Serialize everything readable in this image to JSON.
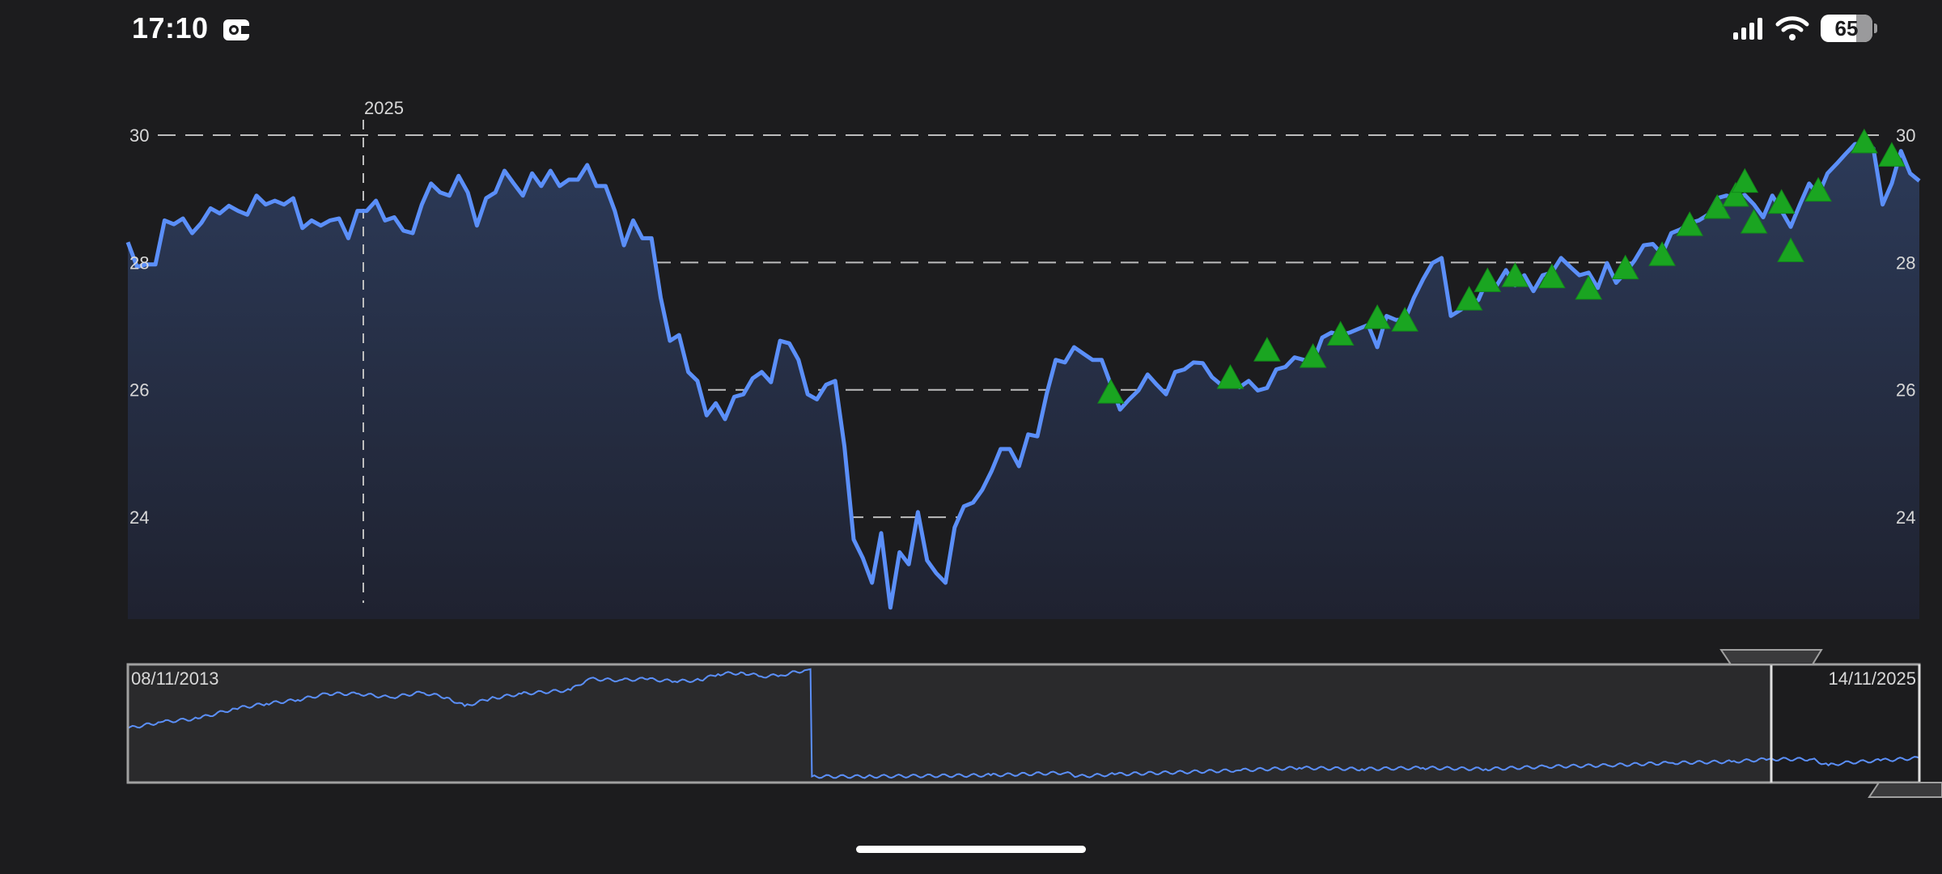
{
  "status_bar": {
    "time": "17:10",
    "battery": "65",
    "icons": [
      "app-icon",
      "signal-icon",
      "wifi-icon",
      "battery-icon"
    ]
  },
  "colors": {
    "background": "#1c1c1e",
    "line": "#5b8ff9",
    "fill_top": "#2c3a58",
    "fill_bottom": "#1f2230",
    "marker": "#1aa521",
    "grid": "#bdbdbd",
    "navigator_bg": "#2a2a2c"
  },
  "chart_data": {
    "type": "line",
    "title": "",
    "grid": true,
    "ylim": [
      22.4,
      30.8
    ],
    "yticks": [
      "30",
      "28",
      "26",
      "24"
    ],
    "ytick_values": [
      30,
      28,
      26,
      24
    ],
    "x_tick_label": "2025",
    "series": [
      {
        "values": [
          28.32,
          27.93,
          27.97,
          27.97,
          28.66,
          28.6,
          28.69,
          28.46,
          28.62,
          28.85,
          28.77,
          28.89,
          28.81,
          28.75,
          29.05,
          28.91,
          28.97,
          28.91,
          29.01,
          28.54,
          28.66,
          28.58,
          28.66,
          28.69,
          28.38,
          28.81,
          28.81,
          28.97,
          28.66,
          28.71,
          28.5,
          28.46,
          28.91,
          29.24,
          29.1,
          29.05,
          29.36,
          29.1,
          28.58,
          29.01,
          29.1,
          29.44,
          29.24,
          29.05,
          29.4,
          29.2,
          29.44,
          29.2,
          29.3,
          29.3,
          29.53,
          29.2,
          29.2,
          28.81,
          28.27,
          28.66,
          28.38,
          28.38,
          27.45,
          26.77,
          26.86,
          26.28,
          26.14,
          25.6,
          25.79,
          25.54,
          25.89,
          25.93,
          26.18,
          26.28,
          26.12,
          26.77,
          26.73,
          26.47,
          25.93,
          25.85,
          26.08,
          26.14,
          25.11,
          23.65,
          23.36,
          22.97,
          23.75,
          22.58,
          23.45,
          23.26,
          24.08,
          23.32,
          23.12,
          22.97,
          23.84,
          24.17,
          24.23,
          24.43,
          24.72,
          25.07,
          25.07,
          24.8,
          25.3,
          25.27,
          25.93,
          26.47,
          26.43,
          26.67,
          26.57,
          26.47,
          26.47,
          26.08,
          25.69,
          25.85,
          25.99,
          26.24,
          26.08,
          25.93,
          26.28,
          26.32,
          26.43,
          26.42,
          26.2,
          26.08,
          26.18,
          26.04,
          26.14,
          25.99,
          26.03,
          26.32,
          26.36,
          26.51,
          26.47,
          26.43,
          26.82,
          26.9,
          26.86,
          26.9,
          26.96,
          27.02,
          26.67,
          27.16,
          27.1,
          27.1,
          27.45,
          27.74,
          27.99,
          28.07,
          27.16,
          27.25,
          27.35,
          27.41,
          27.74,
          27.64,
          27.88,
          27.64,
          27.8,
          27.55,
          27.8,
          27.84,
          28.07,
          27.93,
          27.8,
          27.84,
          27.6,
          27.99,
          27.68,
          27.84,
          28.03,
          28.27,
          28.29,
          28.13,
          28.46,
          28.52,
          28.62,
          28.66,
          28.75,
          29.01,
          29.05,
          29.01,
          29.06,
          28.91,
          28.71,
          29.05,
          28.81,
          28.56,
          28.91,
          29.24,
          29.05,
          29.4,
          29.55,
          29.71,
          29.86,
          29.86,
          29.79,
          28.91,
          29.24,
          29.75,
          29.4,
          29.28
        ]
      }
    ],
    "markers": {
      "shape": "triangle-up",
      "points": [
        {
          "point": 107,
          "value": 25.97
        },
        {
          "point": 120,
          "value": 26.2
        },
        {
          "point": 124,
          "value": 26.63
        },
        {
          "point": 129,
          "value": 26.53
        },
        {
          "point": 132,
          "value": 26.88
        },
        {
          "point": 136,
          "value": 27.14
        },
        {
          "point": 139,
          "value": 27.1
        },
        {
          "point": 146,
          "value": 27.43
        },
        {
          "point": 148,
          "value": 27.72
        },
        {
          "point": 151,
          "value": 27.8
        },
        {
          "point": 155,
          "value": 27.78
        },
        {
          "point": 159,
          "value": 27.6
        },
        {
          "point": 163,
          "value": 27.92
        },
        {
          "point": 167,
          "value": 28.13
        },
        {
          "point": 170,
          "value": 28.6
        },
        {
          "point": 173,
          "value": 28.87
        },
        {
          "point": 175,
          "value": 29.06
        },
        {
          "point": 176,
          "value": 29.28
        },
        {
          "point": 177,
          "value": 28.64
        },
        {
          "point": 180,
          "value": 28.95
        },
        {
          "point": 181,
          "value": 28.19
        },
        {
          "point": 184,
          "value": 29.14
        },
        {
          "point": 189,
          "value": 29.9
        },
        {
          "point": 192,
          "value": 29.69
        }
      ]
    },
    "navigator": {
      "start_label": "08/11/2013",
      "end_label": "14/11/2025",
      "xlim": [
        2013.85,
        2025.87
      ],
      "ylim": [
        3,
        137
      ],
      "selected_range": [
        2024.87,
        2025.87
      ],
      "x": [
        2013.85,
        2014.07,
        2014.32,
        2014.57,
        2014.78,
        2014.99,
        2015.19,
        2015.4,
        2015.61,
        2015.82,
        2015.99,
        2016.11,
        2016.28,
        2016.49,
        2016.82,
        2016.94,
        2017.15,
        2017.32,
        2017.52,
        2017.69,
        2017.81,
        2017.98,
        2018.1,
        2018.23,
        2018.39,
        2018.43,
        2018.44,
        2018.81,
        2019.64,
        2020.14,
        2020.22,
        2020.47,
        2021.3,
        2021.71,
        2022.13,
        2022.54,
        2022.96,
        2023.37,
        2023.78,
        2024.2,
        2024.61,
        2024.86,
        2025.15,
        2025.26,
        2025.36,
        2025.61,
        2025.87
      ],
      "values": [
        64.5,
        71.5,
        75.7,
        86.9,
        92.5,
        96.7,
        103.7,
        103.7,
        99.5,
        105.1,
        99.5,
        89.7,
        98.1,
        103.7,
        107.9,
        120.5,
        119.1,
        120.5,
        117.7,
        119.1,
        126.1,
        127.5,
        123.3,
        124.7,
        130.3,
        131.7,
        9.9,
        9.9,
        11.3,
        14.1,
        9.9,
        12.3,
        16.9,
        19.7,
        18.3,
        19.7,
        18.3,
        21.1,
        22.5,
        25.3,
        26.7,
        29.5,
        29.5,
        22.5,
        25.3,
        28.1,
        30.9
      ]
    }
  }
}
